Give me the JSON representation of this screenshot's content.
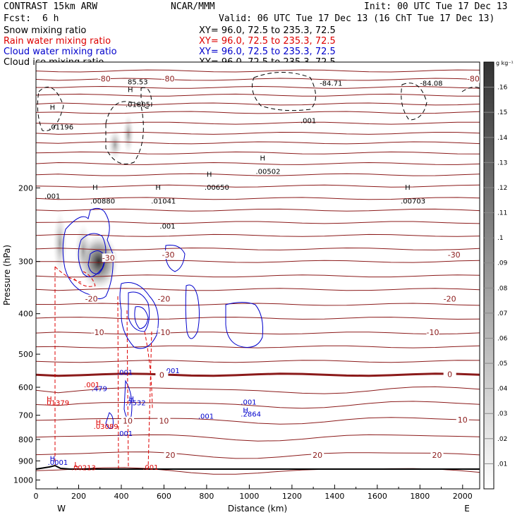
{
  "header": {
    "title": "CONTRAST 15km ARW",
    "org": "NCAR/MMM",
    "init": "Init: 00 UTC Tue 17 Dec 13",
    "fcst_label": "Fcst:",
    "fcst_value": "6 h",
    "valid": "Valid: 06 UTC Tue 17 Dec 13 (16 ChT Tue 17 Dec 13)"
  },
  "legend": [
    {
      "name": "Snow mixing ratio",
      "color": "#000000",
      "xy": "XY=  96.0, 72.5 to 235.3, 72.5"
    },
    {
      "name": "Rain water mixing ratio",
      "color": "#dd0000",
      "xy": "XY=  96.0, 72.5 to 235.3, 72.5"
    },
    {
      "name": "Cloud water mixing ratio",
      "color": "#0000cc",
      "xy": "XY=  96.0, 72.5 to 235.3, 72.5"
    },
    {
      "name": "Cloud ice mixing ratio",
      "color": "#000000",
      "xy": "XY=  96.0, 72.5 to 235.3, 72.5"
    }
  ],
  "chart_data": {
    "type": "cross-section",
    "xlabel": "Distance (km)",
    "ylabel": "Pressure (hPa)",
    "xlim": [
      0,
      2080
    ],
    "ylim": [
      1050,
      100
    ],
    "y_scale": "log",
    "x_ticks": [
      "0",
      "200",
      "400",
      "600",
      "800",
      "1000",
      "1200",
      "1400",
      "1600",
      "1800",
      "2000"
    ],
    "y_ticks": [
      "200",
      "300",
      "400",
      "500",
      "600",
      "700",
      "800",
      "900",
      "1000"
    ],
    "x_end_labels": {
      "left": "W",
      "right": "E"
    },
    "colorbar": {
      "unit": "g kg⁻¹",
      "ticks": [
        ".01",
        ".02",
        ".03",
        ".04",
        ".05",
        ".06",
        ".07",
        ".08",
        ".09",
        ".1",
        ".11",
        ".12",
        ".13",
        ".14",
        ".15",
        ".16"
      ],
      "max": 0.17
    },
    "temperature_labels": [
      {
        "text": "-80",
        "x": 320,
        "p": 110
      },
      {
        "text": "-80",
        "x": 620,
        "p": 110
      },
      {
        "text": "-80",
        "x": 2050,
        "p": 110
      },
      {
        "text": "-30",
        "x": 340,
        "p": 295
      },
      {
        "text": "-30",
        "x": 620,
        "p": 290
      },
      {
        "text": "-30",
        "x": 1960,
        "p": 290
      },
      {
        "text": "-20",
        "x": 260,
        "p": 370
      },
      {
        "text": "-20",
        "x": 600,
        "p": 370
      },
      {
        "text": "-20",
        "x": 1940,
        "p": 370
      },
      {
        "text": "-10",
        "x": 290,
        "p": 445
      },
      {
        "text": "-10",
        "x": 600,
        "p": 445
      },
      {
        "text": "-10",
        "x": 1860,
        "p": 445
      },
      {
        "text": "0",
        "x": 590,
        "p": 563
      },
      {
        "text": "0",
        "x": 1940,
        "p": 560
      },
      {
        "text": "10",
        "x": 430,
        "p": 725
      },
      {
        "text": "10",
        "x": 600,
        "p": 725
      },
      {
        "text": "10",
        "x": 2000,
        "p": 720
      },
      {
        "text": "20",
        "x": 630,
        "p": 875
      },
      {
        "text": "20",
        "x": 1320,
        "p": 875
      },
      {
        "text": "20",
        "x": 1880,
        "p": 875
      }
    ],
    "annotations": [
      {
        "text": "H",
        "x": 65,
        "p": 130,
        "color": "#000000"
      },
      {
        "text": ".01196",
        "x": 60,
        "p": 145,
        "color": "#000000"
      },
      {
        "text": "H",
        "x": 430,
        "p": 118,
        "color": "#000000"
      },
      {
        "text": ".01805",
        "x": 420,
        "p": 128,
        "color": "#000000"
      },
      {
        "text": "85.53",
        "x": 430,
        "p": 113,
        "color": "#000000"
      },
      {
        "text": "-84.71",
        "x": 1330,
        "p": 114,
        "color": "#000000"
      },
      {
        "text": "-84.08",
        "x": 1800,
        "p": 114,
        "color": "#000000"
      },
      {
        "text": ".001",
        "x": 1240,
        "p": 140,
        "color": "#000000"
      },
      {
        "text": "H",
        "x": 1050,
        "p": 172,
        "color": "#000000"
      },
      {
        "text": ".00502",
        "x": 1030,
        "p": 185,
        "color": "#000000"
      },
      {
        "text": "H",
        "x": 800,
        "p": 188,
        "color": "#000000"
      },
      {
        "text": ".00650",
        "x": 790,
        "p": 202,
        "color": "#000000"
      },
      {
        "text": "H",
        "x": 265,
        "p": 202,
        "color": "#000000"
      },
      {
        "text": ".00880",
        "x": 255,
        "p": 218,
        "color": "#000000"
      },
      {
        "text": "H",
        "x": 560,
        "p": 202,
        "color": "#000000"
      },
      {
        "text": ".01041",
        "x": 540,
        "p": 218,
        "color": "#000000"
      },
      {
        "text": "H",
        "x": 1730,
        "p": 202,
        "color": "#000000"
      },
      {
        "text": ".00703",
        "x": 1710,
        "p": 218,
        "color": "#000000"
      },
      {
        "text": ".001",
        "x": 40,
        "p": 212,
        "color": "#000000"
      },
      {
        "text": ".001",
        "x": 580,
        "p": 250,
        "color": "#000000"
      },
      {
        "text": ".001",
        "x": 380,
        "p": 560,
        "color": "#0000cc"
      },
      {
        "text": ".001",
        "x": 600,
        "p": 555,
        "color": "#0000cc"
      },
      {
        "text": ".479",
        "x": 260,
        "p": 613,
        "color": "#0000cc"
      },
      {
        "text": ".001",
        "x": 225,
        "p": 600,
        "color": "#dd0000"
      },
      {
        "text": "H",
        "x": 435,
        "p": 648,
        "color": "#0000cc"
      },
      {
        "text": ".7532",
        "x": 420,
        "p": 662,
        "color": "#0000cc"
      },
      {
        "text": ".001",
        "x": 760,
        "p": 713,
        "color": "#0000cc"
      },
      {
        "text": ".001",
        "x": 960,
        "p": 660,
        "color": "#0000cc"
      },
      {
        "text": "H",
        "x": 970,
        "p": 690,
        "color": "#0000cc"
      },
      {
        "text": ".2864",
        "x": 960,
        "p": 705,
        "color": "#0000cc"
      },
      {
        "text": "H",
        "x": 50,
        "p": 648,
        "color": "#dd0000"
      },
      {
        "text": ".01379",
        "x": 40,
        "p": 663,
        "color": "#dd0000"
      },
      {
        "text": "H",
        "x": 280,
        "p": 737,
        "color": "#dd0000"
      },
      {
        "text": ".03089",
        "x": 270,
        "p": 755,
        "color": "#dd0000"
      },
      {
        "text": ".001",
        "x": 380,
        "p": 785,
        "color": "#0000cc"
      },
      {
        "text": "H",
        "x": 65,
        "p": 900,
        "color": "#0000cc"
      },
      {
        "text": ".0001",
        "x": 55,
        "p": 920,
        "color": "#0000cc"
      },
      {
        "text": "L",
        "x": 180,
        "p": 930,
        "color": "#dd0000"
      },
      {
        "text": ".00213",
        "x": 165,
        "p": 948,
        "color": "#dd0000"
      },
      {
        "text": ".001",
        "x": 500,
        "p": 945,
        "color": "#dd0000"
      }
    ]
  }
}
